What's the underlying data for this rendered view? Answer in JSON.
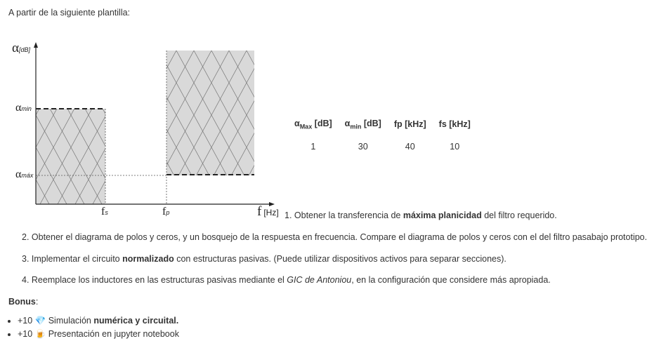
{
  "intro": "A partir de la siguiente plantilla:",
  "diagram": {
    "y_axis": [
      {
        "text": "α"
      },
      {
        "text": "[dB]",
        "style": "sub"
      }
    ],
    "alpha_min": [
      {
        "text": "α"
      },
      {
        "text": "min",
        "style": "sub"
      }
    ],
    "alpha_max": [
      {
        "text": "α"
      },
      {
        "text": "máx",
        "style": "sub"
      }
    ],
    "fs": [
      {
        "text": "f"
      },
      {
        "text": "s",
        "style": "sub"
      }
    ],
    "fp": [
      {
        "text": "f"
      },
      {
        "text": "p",
        "style": "sub"
      }
    ],
    "x_axis": [
      {
        "text": "f"
      },
      {
        "text": "[Hz]",
        "style": "small"
      }
    ]
  },
  "table": {
    "header": [
      [
        {
          "text": "α",
          "style": "bold"
        },
        {
          "text": "Max",
          "style": "sub"
        },
        {
          "text": " [dB]"
        }
      ],
      [
        {
          "text": "α",
          "style": "bold"
        },
        {
          "text": "min",
          "style": "sub"
        },
        {
          "text": " [dB]"
        }
      ],
      [
        {
          "text": "fp [kHz]"
        }
      ],
      [
        {
          "text": "fs [kHz]"
        }
      ]
    ],
    "rows": [
      [
        "1",
        "30",
        "40",
        "10"
      ]
    ]
  },
  "steps": [
    [
      {
        "text": "1. Obtener la transferencia de "
      },
      {
        "text": "máxima planicidad",
        "style": "bold"
      },
      {
        "text": " del filtro requerido."
      }
    ],
    [
      {
        "text": "2. Obtener el diagrama de polos y ceros, y un bosquejo de la respuesta en frecuencia. Compare el diagrama de polos y ceros con el del filtro pasabajo prototipo."
      }
    ],
    [
      {
        "text": "3. Implementar el circuito "
      },
      {
        "text": "normalizado",
        "style": "bold"
      },
      {
        "text": " con estructuras pasivas. (Puede utilizar dispositivos activos para separar secciones)."
      }
    ],
    [
      {
        "text": "4. Reemplace los inductores en las estructuras pasivas mediante el "
      },
      {
        "text": "GIC de Antoniou",
        "style": "italic"
      },
      {
        "text": ", en la configuración que considere más apropiada."
      }
    ]
  ],
  "bonus_title": [
    {
      "text": "Bonus",
      "style": "bold"
    },
    {
      "text": ":"
    }
  ],
  "bonus": [
    [
      {
        "text": "+10 💎 Simulación "
      },
      {
        "text": "numérica y circuital.",
        "style": "bold"
      }
    ],
    [
      {
        "text": "+10 🍺 Presentación en jupyter notebook"
      }
    ]
  ]
}
